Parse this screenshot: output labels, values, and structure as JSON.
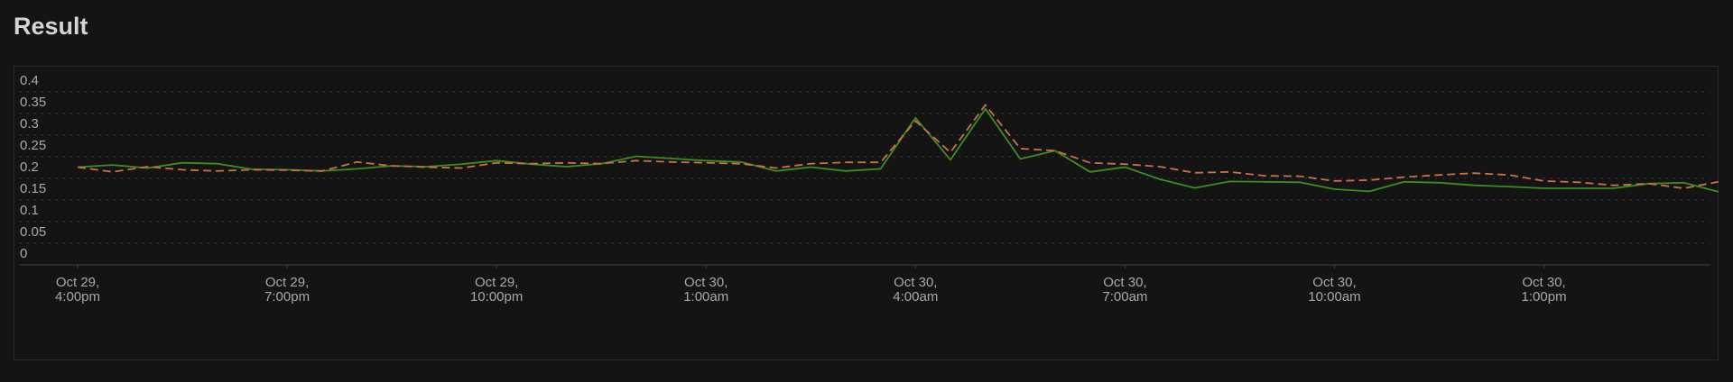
{
  "title": "Result",
  "chart_data": {
    "type": "line",
    "title": "",
    "xlabel": "",
    "ylabel": "",
    "ylim": [
      0,
      0.4
    ],
    "grid": true,
    "legend": "none",
    "yticks": [
      "0",
      "0.05",
      "0.1",
      "0.15",
      "0.2",
      "0.25",
      "0.3",
      "0.35",
      "0.4"
    ],
    "xticks": [
      {
        "line1": "Oct 29,",
        "line2": "4:00pm",
        "at": "Oct 29 4:00pm"
      },
      {
        "line1": "Oct 29,",
        "line2": "7:00pm",
        "at": "Oct 29 7:00pm"
      },
      {
        "line1": "Oct 29,",
        "line2": "10:00pm",
        "at": "Oct 29 10:00pm"
      },
      {
        "line1": "Oct 30,",
        "line2": "1:00am",
        "at": "Oct 30 1:00am"
      },
      {
        "line1": "Oct 30,",
        "line2": "4:00am",
        "at": "Oct 30 4:00am"
      },
      {
        "line1": "Oct 30,",
        "line2": "7:00am",
        "at": "Oct 30 7:00am"
      },
      {
        "line1": "Oct 30,",
        "line2": "10:00am",
        "at": "Oct 30 10:00am"
      },
      {
        "line1": "Oct 30,",
        "line2": "1:00pm",
        "at": "Oct 30 1:00pm"
      }
    ],
    "x": [
      "Oct 29 4:00pm",
      "Oct 29 4:30pm",
      "Oct 29 5:00pm",
      "Oct 29 5:30pm",
      "Oct 29 6:00pm",
      "Oct 29 6:30pm",
      "Oct 29 7:00pm",
      "Oct 29 7:30pm",
      "Oct 29 8:00pm",
      "Oct 29 8:30pm",
      "Oct 29 9:00pm",
      "Oct 29 9:30pm",
      "Oct 29 10:00pm",
      "Oct 29 10:30pm",
      "Oct 29 11:00pm",
      "Oct 29 11:30pm",
      "Oct 30 12:00am",
      "Oct 30 12:30am",
      "Oct 30 1:00am",
      "Oct 30 1:30am",
      "Oct 30 2:00am",
      "Oct 30 2:30am",
      "Oct 30 3:00am",
      "Oct 30 3:30am",
      "Oct 30 4:00am",
      "Oct 30 4:30am",
      "Oct 30 5:00am",
      "Oct 30 5:30am",
      "Oct 30 6:00am",
      "Oct 30 6:30am",
      "Oct 30 7:00am",
      "Oct 30 7:30am",
      "Oct 30 8:00am",
      "Oct 30 8:30am",
      "Oct 30 9:00am",
      "Oct 30 9:30am",
      "Oct 30 10:00am",
      "Oct 30 10:30am",
      "Oct 30 11:00am",
      "Oct 30 11:30am",
      "Oct 30 12:00pm",
      "Oct 30 12:30pm",
      "Oct 30 1:00pm",
      "Oct 30 1:30pm",
      "Oct 30 2:00pm",
      "Oct 30 2:30pm",
      "Oct 30 3:00pm",
      "Oct 30 3:30pm"
    ],
    "series": [
      {
        "color": "#3d8c1e",
        "style": "solid",
        "values": [
          0.226,
          0.231,
          0.224,
          0.236,
          0.234,
          0.221,
          0.22,
          0.217,
          0.222,
          0.229,
          0.227,
          0.233,
          0.241,
          0.233,
          0.227,
          0.234,
          0.251,
          0.246,
          0.241,
          0.238,
          0.217,
          0.226,
          0.217,
          0.222,
          0.34,
          0.243,
          0.361,
          0.245,
          0.264,
          0.215,
          0.226,
          0.198,
          0.178,
          0.193,
          0.192,
          0.191,
          0.175,
          0.17,
          0.192,
          0.19,
          0.184,
          0.181,
          0.177,
          0.177,
          0.177,
          0.188,
          0.19,
          0.169
        ]
      },
      {
        "color": "#c8704a",
        "style": "dashed",
        "values": [
          0.226,
          0.215,
          0.227,
          0.22,
          0.217,
          0.22,
          0.219,
          0.217,
          0.238,
          0.229,
          0.226,
          0.224,
          0.236,
          0.234,
          0.236,
          0.234,
          0.241,
          0.238,
          0.236,
          0.234,
          0.224,
          0.234,
          0.237,
          0.237,
          0.333,
          0.26,
          0.37,
          0.269,
          0.264,
          0.236,
          0.233,
          0.227,
          0.213,
          0.215,
          0.206,
          0.205,
          0.194,
          0.196,
          0.203,
          0.208,
          0.212,
          0.208,
          0.194,
          0.191,
          0.184,
          0.188,
          0.177,
          0.192
        ]
      }
    ]
  }
}
